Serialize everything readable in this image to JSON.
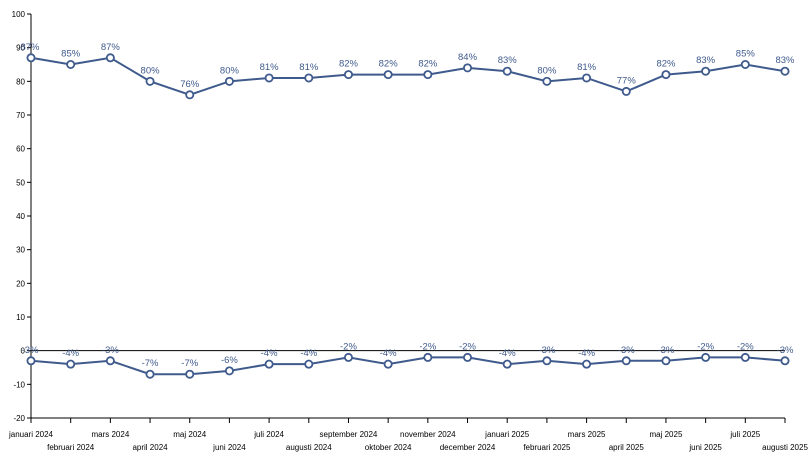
{
  "chart_data": {
    "type": "line",
    "title": "",
    "xlabel": "",
    "ylabel": "",
    "ylim": [
      -20,
      100
    ],
    "yticks": [
      -20,
      -10,
      0,
      10,
      20,
      30,
      40,
      50,
      60,
      70,
      80,
      90,
      100
    ],
    "ytick_labels": [
      "-20",
      "-10",
      "0",
      "10",
      "20",
      "30",
      "40",
      "50",
      "60",
      "70",
      "80",
      "90",
      "100"
    ],
    "grid": false,
    "legend": "none",
    "line_color": "#3f5a8c",
    "label_color": "#3f5a8c",
    "categories": [
      "januari 2024",
      "februari 2024",
      "mars 2024",
      "april 2024",
      "maj 2024",
      "juni 2024",
      "juli 2024",
      "augusti 2024",
      "september 2024",
      "oktober 2024",
      "november 2024",
      "december 2024",
      "januari 2025",
      "februari 2025",
      "mars 2025",
      "april 2025",
      "maj 2025",
      "juni 2025",
      "juli 2025",
      "augusti 2025"
    ],
    "series": [
      {
        "values": [
          87,
          85,
          87,
          80,
          76,
          80,
          81,
          81,
          82,
          82,
          82,
          84,
          83,
          80,
          81,
          77,
          82,
          83,
          85,
          83
        ],
        "labels": [
          "87%",
          "85%",
          "87%",
          "80%",
          "76%",
          "80%",
          "81%",
          "81%",
          "82%",
          "82%",
          "82%",
          "84%",
          "83%",
          "80%",
          "81%",
          "77%",
          "82%",
          "83%",
          "85%",
          "83%"
        ]
      },
      {
        "values": [
          -3,
          -4,
          -3,
          -7,
          -7,
          -6,
          -4,
          -4,
          -2,
          -4,
          -2,
          -2,
          -4,
          -3,
          -4,
          -3,
          -3,
          -2,
          -2,
          -3
        ],
        "labels": [
          "-3%",
          "-4%",
          "-3%",
          "-7%",
          "-7%",
          "-6%",
          "-4%",
          "-4%",
          "-2%",
          "-4%",
          "-2%",
          "-2%",
          "-4%",
          "-3%",
          "-4%",
          "-3%",
          "-3%",
          "-2%",
          "-2%",
          "-3%"
        ]
      }
    ]
  }
}
